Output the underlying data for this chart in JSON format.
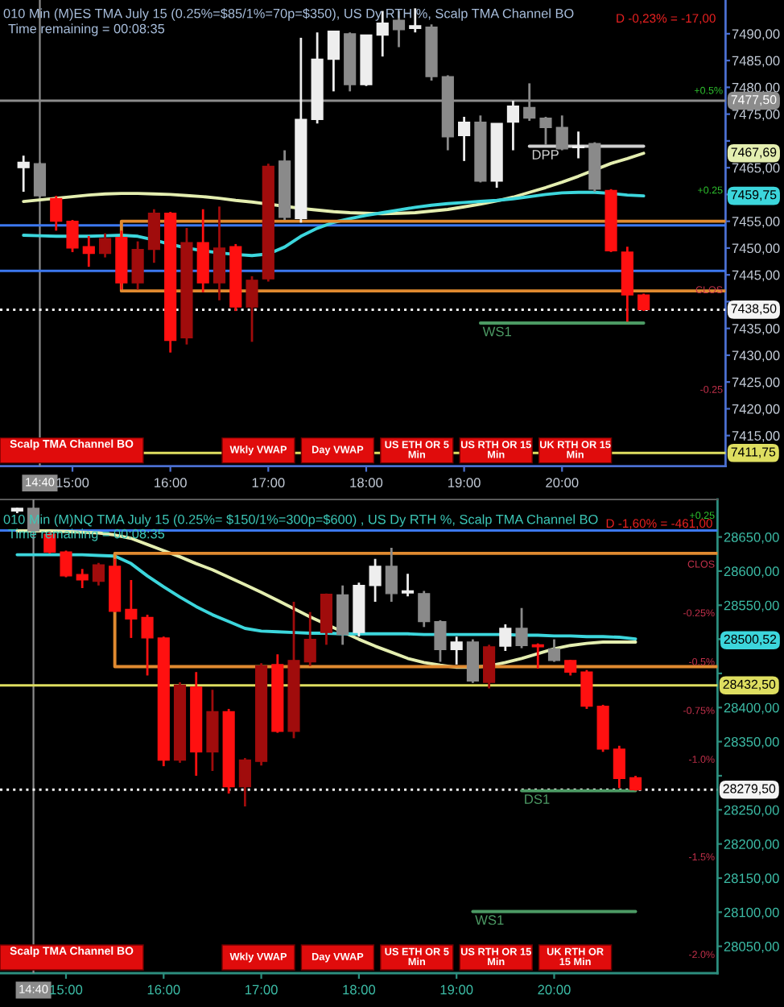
{
  "chart_data": [
    {
      "type": "candlestick",
      "title": "010 Min (M)ES TMA July 15 (0.25%=$85/1%=70p=$350), US Dy RTH %, Scalp TMA Channel BO",
      "subtitle": "Time remaining = 00:08:35",
      "x": [
        14.5,
        14.6667,
        14.8333,
        15,
        15.1667,
        15.3333,
        15.5,
        15.6667,
        15.8333,
        16,
        16.1667,
        16.3333,
        16.5,
        16.6667,
        16.8333,
        17,
        17.1667,
        17.3333,
        17.5,
        17.6667,
        17.8333,
        18,
        18.1667,
        18.3333,
        18.5,
        18.6667,
        18.8333,
        19,
        19.1667,
        19.3333,
        19.5,
        19.6667,
        19.8333,
        20,
        20.1667,
        20.3333,
        20.5,
        20.6667,
        20.8333
      ],
      "ohlc": [
        [
          7465,
          7467.25,
          7460.5,
          7466
        ],
        [
          7465.75,
          7466,
          7459.5,
          7459.75
        ],
        [
          7459.25,
          7459.75,
          7453.25,
          7455
        ],
        [
          7455,
          7455.25,
          7449.25,
          7450
        ],
        [
          7450.25,
          7452.25,
          7446.5,
          7449
        ],
        [
          7449,
          7452.75,
          7448.25,
          7451.75
        ],
        [
          7452,
          7453.25,
          7442.25,
          7443.5
        ],
        [
          7443.5,
          7451.25,
          7442.25,
          7449.75
        ],
        [
          7449.75,
          7457.25,
          7447.25,
          7456.5
        ],
        [
          7456.5,
          7456.75,
          7430.5,
          7432.75
        ],
        [
          7433.25,
          7453.75,
          7432,
          7451
        ],
        [
          7451,
          7457.25,
          7441.75,
          7443.5
        ],
        [
          7443.5,
          7457.75,
          7440.25,
          7450
        ],
        [
          7450.25,
          7450.75,
          7438.25,
          7439
        ],
        [
          7439,
          7444.75,
          7432.5,
          7444
        ],
        [
          7444.25,
          7465.75,
          7443.75,
          7465.25
        ],
        [
          7466.25,
          7468.25,
          7455.25,
          7455.75
        ],
        [
          7455.5,
          7489.25,
          7454.75,
          7474
        ],
        [
          7474,
          7490.25,
          7473.25,
          7485.25
        ],
        [
          7485.25,
          7490.5,
          7479.25,
          7490.5
        ],
        [
          7490,
          7490.25,
          7479.25,
          7480.5
        ],
        [
          7480.5,
          7489.75,
          7480.25,
          7489.75
        ],
        [
          7489.75,
          7494.25,
          7485.75,
          7492
        ],
        [
          7492.5,
          7494.25,
          7487.5,
          7490.75
        ],
        [
          7491,
          7494.75,
          7490.25,
          7491.5
        ],
        [
          7491.25,
          7491.75,
          7481.25,
          7482
        ],
        [
          7482,
          7482.25,
          7468.25,
          7470.75
        ],
        [
          7471,
          7474.5,
          7466.25,
          7473.5
        ],
        [
          7473.5,
          7474.75,
          7462.25,
          7462.5
        ],
        [
          7462.5,
          7473.25,
          7461.25,
          7473.25
        ],
        [
          7473.5,
          7477.5,
          7468.25,
          7476.5
        ],
        [
          7476.25,
          7480.75,
          7473.75,
          7474.25
        ],
        [
          7474.25,
          7474.5,
          7469.25,
          7472.5
        ],
        [
          7472.5,
          7474.75,
          7468.25,
          7468.5
        ],
        [
          7468.75,
          7471.75,
          7466.75,
          7469
        ],
        [
          7469.5,
          7469.75,
          7460.5,
          7461
        ],
        [
          7460.75,
          7461,
          7449.25,
          7449.5
        ],
        [
          7449.25,
          7450.25,
          7436.25,
          7441.25
        ],
        [
          7441.25,
          7441.5,
          7438.25,
          7438.5
        ]
      ],
      "colors": [
        "#eeeeee",
        "#8a8a8a",
        "#ff1010",
        "#ff1010",
        "#ff1010",
        "#a00c0c",
        "#ff1010",
        "#a00c0c",
        "#a00c0c",
        "#ff1010",
        "#a00c0c",
        "#ff1010",
        "#a00c0c",
        "#ff1010",
        "#a00c0c",
        "#a00c0c",
        "#8a8a8a",
        "#eeeeee",
        "#eeeeee",
        "#eeeeee",
        "#8a8a8a",
        "#eeeeee",
        "#eeeeee",
        "#8a8a8a",
        "#eeeeee",
        "#8a8a8a",
        "#8a8a8a",
        "#eeeeee",
        "#8a8a8a",
        "#eeeeee",
        "#eeeeee",
        "#8a8a8a",
        "#8a8a8a",
        "#8a8a8a",
        "#eeeeee",
        "#8a8a8a",
        "#ff1010",
        "#ff1010",
        "#ff1010"
      ],
      "series": [
        {
          "type": "line",
          "color": "#e4eeb0",
          "values": [
            7458.7,
            7459.0,
            7459.3,
            7459.6,
            7459.9,
            7460.1,
            7460.2,
            7460.2,
            7460.1,
            7460.0,
            7459.8,
            7459.6,
            7459.3,
            7458.9,
            7458.6,
            7458.2,
            7457.8,
            7457.4,
            7457.1,
            7456.8,
            7456.6,
            7456.5,
            7456.4,
            7456.5,
            7456.6,
            7456.9,
            7457.2,
            7457.7,
            7458.2,
            7458.8,
            7459.5,
            7460.4,
            7461.3,
            7462.3,
            7463.4,
            7464.6,
            7465.8,
            7466.7,
            7467.69
          ]
        },
        {
          "type": "line",
          "color": "#3cd6dc",
          "values": [
            7452.4,
            7452.3,
            7452.2,
            7452.2,
            7452.2,
            7452.3,
            7452.4,
            7452.2,
            7451.5,
            7450.7,
            7450.0,
            7449.5,
            7449.1,
            7448.8,
            7448.6,
            7448.9,
            7450.2,
            7452.2,
            7453.7,
            7454.8,
            7455.5,
            7456.1,
            7456.6,
            7457.1,
            7457.6,
            7458.0,
            7458.3,
            7458.5,
            7458.7,
            7458.9,
            7459.2,
            7459.6,
            7460.0,
            7460.3,
            7460.4,
            7460.4,
            7460.2,
            7459.9,
            7459.75
          ]
        },
        {
          "type": "line",
          "color": "#e08a30",
          "x": [
            21.67,
            15.5,
            15.5,
            21.67
          ],
          "values": [
            7455,
            7455,
            7442,
            7442
          ]
        },
        {
          "type": "line",
          "name": "DPP",
          "color": "#cfcfcf",
          "x": [
            19.6667,
            20.8333
          ],
          "values": [
            7469,
            7469
          ]
        },
        {
          "type": "line",
          "name": "WS1",
          "color": "#4c9a64",
          "x": [
            19.1667,
            20.8333
          ],
          "values": [
            7436,
            7436
          ]
        }
      ],
      "ref_lines": [
        {
          "axis": "x",
          "value": 14.6667,
          "color": "#8c8c8c"
        },
        {
          "axis": "y",
          "value": 7477.5,
          "label": "7477,50",
          "color": "#8c8c8c"
        },
        {
          "axis": "y",
          "value": 7454.25,
          "color": "#3c78f0"
        },
        {
          "axis": "y",
          "value": 7445.75,
          "color": "#3c78f0"
        },
        {
          "axis": "y",
          "value": 7438.5,
          "label": "7438,50",
          "color": "#f4f4f4",
          "line_style": "dotted"
        },
        {
          "axis": "y",
          "value": 7411.75,
          "label": "7411,75",
          "color": "#dede60"
        }
      ],
      "xlim": [
        14.26,
        21.67
      ],
      "xticks": [
        {
          "value": 14.6667,
          "label": "14:40"
        },
        {
          "value": 15,
          "label": "15:00"
        },
        {
          "value": 16,
          "label": "16:00"
        },
        {
          "value": 17,
          "label": "17:00"
        },
        {
          "value": 18,
          "label": "18:00"
        },
        {
          "value": 19,
          "label": "19:00"
        },
        {
          "value": 20,
          "label": "20:00"
        }
      ],
      "ylim": [
        7409.3,
        7496.3
      ],
      "yticks": [
        {
          "value": 7415,
          "label": "7415,00"
        },
        {
          "value": 7420,
          "label": "7420,00"
        },
        {
          "value": 7425,
          "label": "7425,00"
        },
        {
          "value": 7430,
          "label": "7430,00"
        },
        {
          "value": 7435,
          "label": "7435,00"
        },
        {
          "value": 7440,
          "label": null
        },
        {
          "value": 7445,
          "label": "7445,00"
        },
        {
          "value": 7450,
          "label": "7450,00"
        },
        {
          "value": 7455,
          "label": "7455,00"
        },
        {
          "value": 7460,
          "label": null
        },
        {
          "value": 7465,
          "label": "7465,00"
        },
        {
          "value": 7470,
          "label": null
        },
        {
          "value": 7475,
          "label": "7475,00"
        },
        {
          "value": 7480,
          "label": "7480,00"
        },
        {
          "value": 7485,
          "label": "7485,00"
        },
        {
          "value": 7490,
          "label": "7490,00"
        }
      ],
      "y2lim": [
        -0.4428,
        0.7263
      ],
      "y2ticks": [
        {
          "value": 0.5,
          "label": "+0.5%"
        },
        {
          "value": 0.25,
          "label": "+0.25"
        },
        {
          "value": 0,
          "label": "CLOS"
        },
        {
          "value": -0.25,
          "label": "-0.25"
        }
      ],
      "annotations": [
        "D -0,23% = -17,00",
        "Scalp TMA Channel BO",
        "Wkly VWAP",
        "Day VWAP",
        "US ETH OR 5\nMin",
        "US RTH OR 15\nMin",
        "UK RTH OR 15\nMin",
        {
          "text": "7467,69",
          "y": 7467.69
        },
        {
          "text": "7459,75",
          "y": 7459.75
        }
      ]
    },
    {
      "type": "candlestick",
      "title": "010 Min (M)NQ TMA July 15 (0.25%= $150/1%=300p=$600) , US Dy RTH %, Scalp TMA Channel BO",
      "subtitle": "Time remaining = 00:08:35",
      "x": [
        14.5,
        14.6667,
        14.8333,
        15,
        15.1667,
        15.3333,
        15.5,
        15.6667,
        15.8333,
        16,
        16.1667,
        16.3333,
        16.5,
        16.6667,
        16.8333,
        17,
        17.1667,
        17.3333,
        17.5,
        17.6667,
        17.8333,
        18,
        18.1667,
        18.3333,
        18.5,
        18.6667,
        18.8333,
        19,
        19.1667,
        19.3333,
        19.5,
        19.6667,
        19.8333,
        20,
        20.1667,
        20.3333,
        20.5,
        20.6667,
        20.8333
      ],
      "ohlc": [
        [
          28688,
          28693,
          28685,
          28692
        ],
        [
          28692,
          28693,
          28658,
          28659
        ],
        [
          28654,
          28658,
          28626,
          28628
        ],
        [
          28628,
          28630,
          28591,
          28593
        ],
        [
          28595,
          28603,
          28575,
          28587
        ],
        [
          28585,
          28612,
          28579,
          28609
        ],
        [
          28607,
          28618,
          28540,
          28541
        ],
        [
          28544,
          28587,
          28502,
          28530
        ],
        [
          28532,
          28536,
          28447,
          28502
        ],
        [
          28502,
          28504,
          28314,
          28323
        ],
        [
          28323,
          28437,
          28319,
          28433
        ],
        [
          28430,
          28452,
          28300,
          28335
        ],
        [
          28335,
          28426,
          28307,
          28394
        ],
        [
          28394,
          28398,
          28274,
          28284
        ],
        [
          28284,
          28326,
          28255,
          28323
        ],
        [
          28321,
          28465,
          28315,
          28461
        ],
        [
          28463,
          28478,
          28363,
          28365
        ],
        [
          28365,
          28555,
          28355,
          28469
        ],
        [
          28467,
          28540,
          28461,
          28500
        ],
        [
          28510,
          28567,
          28492,
          28566
        ],
        [
          28565,
          28579,
          28492,
          28507
        ],
        [
          28510,
          28583,
          28504,
          28579
        ],
        [
          28579,
          28618,
          28555,
          28607
        ],
        [
          28607,
          28634,
          28555,
          28567
        ],
        [
          28568,
          28596,
          28563,
          28571
        ],
        [
          28567,
          28571,
          28518,
          28526
        ],
        [
          28526,
          28528,
          28467,
          28485
        ],
        [
          28485,
          28504,
          28463,
          28496
        ],
        [
          28496,
          28500,
          28436,
          28439
        ],
        [
          28437,
          28492,
          28428,
          28489
        ],
        [
          28490,
          28522,
          28483,
          28516
        ],
        [
          28516,
          28546,
          28487,
          28491
        ],
        [
          28492,
          28494,
          28457,
          28489
        ],
        [
          28486,
          28500,
          28467,
          28469
        ],
        [
          28469,
          28470,
          28447,
          28452
        ],
        [
          28452,
          28455,
          28398,
          28402
        ],
        [
          28402,
          28404,
          28335,
          28339
        ],
        [
          28339,
          28344,
          28282,
          28296
        ],
        [
          28297,
          28300,
          28278,
          28279.5
        ]
      ],
      "colors": [
        "#eeeeee",
        "#8a8a8a",
        "#ff1010",
        "#ff1010",
        "#ff1010",
        "#a00c0c",
        "#ff1010",
        "#ff1010",
        "#ff1010",
        "#ff1010",
        "#a00c0c",
        "#ff1010",
        "#a00c0c",
        "#ff1010",
        "#a00c0c",
        "#a00c0c",
        "#ff1010",
        "#a00c0c",
        "#a00c0c",
        "#a00c0c",
        "#8a8a8a",
        "#eeeeee",
        "#eeeeee",
        "#8a8a8a",
        "#eeeeee",
        "#8a8a8a",
        "#8a8a8a",
        "#eeeeee",
        "#8a8a8a",
        "#a00c0c",
        "#eeeeee",
        "#8a8a8a",
        "#ff1010",
        "#8a8a8a",
        "#ff1010",
        "#ff1010",
        "#ff1010",
        "#ff1010",
        "#ff1010"
      ],
      "series": [
        {
          "type": "line",
          "color": "#e4eeb0",
          "values": [
            28659,
            28659,
            28659,
            28658,
            28657,
            28656,
            28653,
            28648,
            28639,
            28630,
            28621,
            28611,
            28602,
            28591,
            28580,
            28569,
            28557,
            28545,
            28533,
            28522,
            28511,
            28500,
            28490,
            28481,
            28472,
            28466,
            28462,
            28459,
            28459,
            28461,
            28466,
            28472,
            28479,
            28486,
            28491,
            28494,
            28496,
            28496,
            28496
          ]
        },
        {
          "type": "line",
          "color": "#3cd6dc",
          "values": [
            28624,
            28624,
            28624,
            28624,
            28624,
            28623,
            28622,
            28611,
            28593,
            28577,
            28562,
            28548,
            28536,
            28526,
            28516,
            28512,
            28511,
            28510,
            28509,
            28509,
            28508,
            28508,
            28508,
            28508,
            28508,
            28507,
            28507,
            28507,
            28507,
            28507,
            28507,
            28506,
            28506,
            28505,
            28505,
            28504,
            28504,
            28503,
            28500.52
          ]
        },
        {
          "type": "line",
          "color": "#e08a30",
          "x": [
            21.67,
            15.5,
            15.5,
            21.67
          ],
          "values": [
            28626,
            28626,
            28460,
            28460
          ]
        },
        {
          "type": "line",
          "name": "DS1",
          "color": "#4c9a64",
          "x": [
            19.6667,
            20.8333
          ],
          "values": [
            28278,
            28278
          ]
        },
        {
          "type": "line",
          "name": "WS1",
          "color": "#4c9a64",
          "x": [
            19.1667,
            20.8333
          ],
          "values": [
            28101,
            28101
          ]
        }
      ],
      "ref_lines": [
        {
          "axis": "x",
          "value": 14.6667,
          "color": "#8c8c8c"
        },
        {
          "axis": "y",
          "value": 28659.5,
          "color": "#3c78f0"
        },
        {
          "axis": "y",
          "value": 28432.5,
          "label": "28432,50",
          "color": "#dede60"
        },
        {
          "axis": "y",
          "value": 28279.5,
          "label": "28279,50",
          "color": "#f4f4f4",
          "line_style": "dotted"
        }
      ],
      "xlim": [
        14.324,
        21.673
      ],
      "xticks": [
        {
          "value": 14.6667,
          "label": "14:40"
        },
        {
          "value": 15,
          "label": "15:00"
        },
        {
          "value": 16,
          "label": "16:00"
        },
        {
          "value": 17,
          "label": "17:00"
        },
        {
          "value": 18,
          "label": "18:00"
        },
        {
          "value": 19,
          "label": "19:00"
        },
        {
          "value": 20,
          "label": "20:00"
        }
      ],
      "ylim": [
        28010.6,
        28705
      ],
      "yticks": [
        {
          "value": 28050,
          "label": "28050,00"
        },
        {
          "value": 28100,
          "label": "28100,00"
        },
        {
          "value": 28150,
          "label": "28150,00"
        },
        {
          "value": 28200,
          "label": "28200,00"
        },
        {
          "value": 28250,
          "label": "28250,00"
        },
        {
          "value": 28300,
          "label": null
        },
        {
          "value": 28350,
          "label": "28350,00"
        },
        {
          "value": 28400,
          "label": "28400,00"
        },
        {
          "value": 28450,
          "label": null
        },
        {
          "value": 28500,
          "label": null
        },
        {
          "value": 28500.52,
          "label": "28500,52"
        },
        {
          "value": 28550,
          "label": "28550,00"
        },
        {
          "value": 28600,
          "label": "28600,00"
        },
        {
          "value": 28650,
          "label": "28650,00"
        }
      ],
      "y2lim": [
        -2.0968,
        0.3303
      ],
      "y2ticks": [
        {
          "value": 0.25,
          "label": "+0.25"
        },
        {
          "value": 0,
          "label": "CLOS"
        },
        {
          "value": -0.25,
          "label": "-0.25%"
        },
        {
          "value": -0.5,
          "label": "-0.5%"
        },
        {
          "value": -0.75,
          "label": "-0.75%"
        },
        {
          "value": -1,
          "label": "-1.0%"
        },
        {
          "value": -1.5,
          "label": "-1.5%"
        },
        {
          "value": -2,
          "label": "-2.0%"
        }
      ],
      "annotations": [
        "D -1,60% = -461,00",
        "Scalp TMA Channel BO",
        "Wkly VWAP",
        "Day VWAP",
        "US ETH OR 5\nMin",
        "US RTH OR 15\nMin",
        "UK RTH OR\n15 Min"
      ]
    }
  ]
}
